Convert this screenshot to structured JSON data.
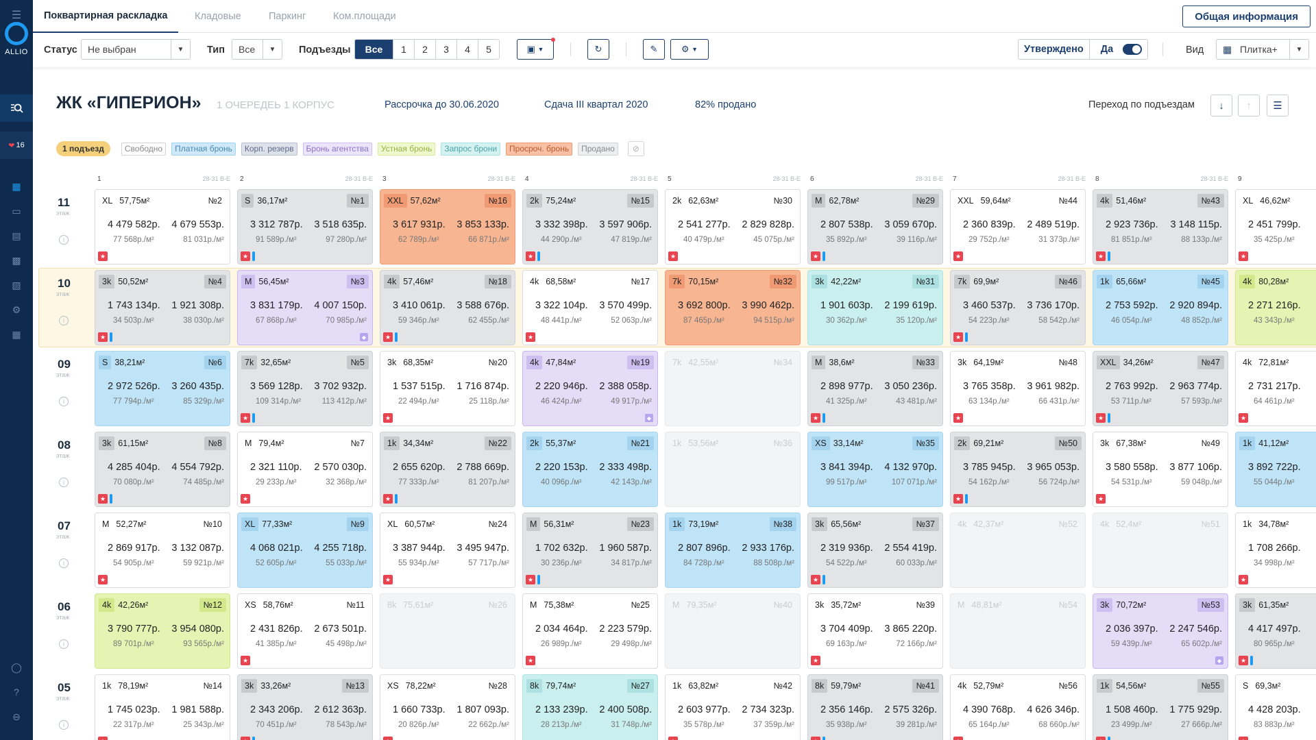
{
  "app": {
    "logo_text": "ALLIO",
    "badge_count": "16"
  },
  "tabs": [
    "Поквартирная раскладка",
    "Кладовые",
    "Паркинг",
    "Ком.площади"
  ],
  "info_button": "Общая информация",
  "filters": {
    "status_label": "Статус",
    "status_value": "Не выбран",
    "type_label": "Тип",
    "type_value": "Все",
    "entrances_label": "Подъезды",
    "entrances": [
      "Все",
      "1",
      "2",
      "3",
      "4",
      "5"
    ],
    "approved_label": "Утверждено",
    "approved_value": "Да",
    "view_label": "Вид",
    "view_value": "Плитка+"
  },
  "header": {
    "title": "ЖК «ГИПЕРИОН»",
    "subtitle": "1 ОЧЕРЕДЕЬ 1 КОРПУС",
    "installment": "Рассрочка до 30.06.2020",
    "delivery": "Сдача III квартал 2020",
    "sold": "82% продано",
    "goto": "Переход по подъездам"
  },
  "legend": {
    "entrance": "1 подъезд",
    "items": [
      {
        "label": "Свободно",
        "bg": "#ffffff",
        "border": "#d0d4d8",
        "color": "#888888"
      },
      {
        "label": "Платная бронь",
        "bg": "#cfe9f8",
        "border": "#9fd2f0",
        "color": "#4a87b3"
      },
      {
        "label": "Корп. резерв",
        "bg": "#dde1ea",
        "border": "#b7bfd0",
        "color": "#5d6b88"
      },
      {
        "label": "Бронь агентства",
        "bg": "#ece4fa",
        "border": "#cdbdf0",
        "color": "#8b72c9"
      },
      {
        "label": "Устная бронь",
        "bg": "#f0f8d0",
        "border": "#d9ec98",
        "color": "#99b040"
      },
      {
        "label": "Запрос брони",
        "bg": "#d4f2f2",
        "border": "#a9e2e2",
        "color": "#4aa2a2"
      },
      {
        "label": "Просроч. бронь",
        "bg": "#f8c0a4",
        "border": "#ef9c75",
        "color": "#b85a30"
      },
      {
        "label": "Продано",
        "bg": "#eceeef",
        "border": "#d0d3d6",
        "color": "#888888"
      }
    ]
  },
  "columns": [
    {
      "num": "1",
      "range": "28-31",
      "sec": "В-Е"
    },
    {
      "num": "2",
      "range": "28-31",
      "sec": "В-Е"
    },
    {
      "num": "3",
      "range": "28-31",
      "sec": "В-Е"
    },
    {
      "num": "4",
      "range": "28-31",
      "sec": "В-Е"
    },
    {
      "num": "5",
      "range": "28-31",
      "sec": "В-Е"
    },
    {
      "num": "6",
      "range": "28-31",
      "sec": "В-Е"
    },
    {
      "num": "7",
      "range": "28-31",
      "sec": "В-Е"
    },
    {
      "num": "8",
      "range": "28-31",
      "sec": "В-Е"
    },
    {
      "num": "9",
      "range": "",
      "sec": ""
    }
  ],
  "floor_word": "этаж",
  "floors": [
    {
      "num": "11",
      "highlight": false,
      "cells": [
        {
          "c": "white",
          "t": "XL",
          "a": "57,75м²",
          "n": "№2",
          "p1": "4 479 582р.",
          "p2": "4 679 553р.",
          "m1": "77 568р./м²",
          "m2": "81 031р./м²",
          "star": true
        },
        {
          "c": "gray",
          "t": "S",
          "a": "36,17м²",
          "n": "№1",
          "p1": "3 312 787р.",
          "p2": "3 518 635р.",
          "m1": "91 589р./м²",
          "m2": "97 280р./м²",
          "star": true,
          "bar": true
        },
        {
          "c": "orange",
          "t": "XXL",
          "a": "57,62м²",
          "n": "№16",
          "p1": "3 617 931р.",
          "p2": "3 853 133р.",
          "m1": "62 789р./м²",
          "m2": "66 871р./м²"
        },
        {
          "c": "gray",
          "t": "2k",
          "a": "75,24м²",
          "n": "№15",
          "p1": "3 332 398р.",
          "p2": "3 597 906р.",
          "m1": "44 290р./м²",
          "m2": "47 819р./м²",
          "star": true,
          "bar": true
        },
        {
          "c": "white",
          "t": "2k",
          "a": "62,63м²",
          "n": "№30",
          "p1": "2 541 277р.",
          "p2": "2 829 828р.",
          "m1": "40 479р./м²",
          "m2": "45 075р./м²",
          "star": true
        },
        {
          "c": "gray",
          "t": "M",
          "a": "62,78м²",
          "n": "№29",
          "p1": "2 807 538р.",
          "p2": "3 059 670р.",
          "m1": "35 892р./м²",
          "m2": "39 116р./м²",
          "star": true,
          "bar": true
        },
        {
          "c": "white",
          "t": "XXL",
          "a": "59,64м²",
          "n": "№44",
          "p1": "2 360 839р.",
          "p2": "2 489 519р.",
          "m1": "29 752р./м²",
          "m2": "31 373р./м²",
          "star": true
        },
        {
          "c": "gray",
          "t": "4k",
          "a": "51,46м²",
          "n": "№43",
          "p1": "2 923 736р.",
          "p2": "3 148 115р.",
          "m1": "81 851р./м²",
          "m2": "88 133р./м²",
          "star": true,
          "bar": true
        },
        {
          "c": "white",
          "t": "XL",
          "a": "46,62м²",
          "n": "",
          "p1": "2 451 799р.",
          "p2": "",
          "m1": "35 425р./м²",
          "m2": "",
          "star": true
        }
      ]
    },
    {
      "num": "10",
      "highlight": true,
      "cells": [
        {
          "c": "gray",
          "t": "3k",
          "a": "50,52м²",
          "n": "№4",
          "p1": "1 743 134р.",
          "p2": "1 921 308р.",
          "m1": "34 503р./м²",
          "m2": "38 030р./м²",
          "star": true,
          "bar": true
        },
        {
          "c": "purple",
          "t": "M",
          "a": "56,45м²",
          "n": "№3",
          "p1": "3 831 179р.",
          "p2": "4 007 150р.",
          "m1": "67 868р./м²",
          "m2": "70 985р./м²",
          "dia": true
        },
        {
          "c": "gray",
          "t": "4k",
          "a": "57,46м²",
          "n": "№18",
          "p1": "3 410 061р.",
          "p2": "3 588 676р.",
          "m1": "59 346р./м²",
          "m2": "62 455р./м²",
          "star": true,
          "bar": true
        },
        {
          "c": "white",
          "t": "4k",
          "a": "68,58м²",
          "n": "№17",
          "p1": "3 322 104р.",
          "p2": "3 570 499р.",
          "m1": "48 441р./м²",
          "m2": "52 063р./м²",
          "star": true
        },
        {
          "c": "orange",
          "t": "7k",
          "a": "70,15м²",
          "n": "№32",
          "p1": "3 692 800р.",
          "p2": "3 990 462р.",
          "m1": "87 465р./м²",
          "m2": "94 515р./м²"
        },
        {
          "c": "cyan",
          "t": "3k",
          "a": "42,22м²",
          "n": "№31",
          "p1": "1 901 603р.",
          "p2": "2 199 619р.",
          "m1": "30 362р./м²",
          "m2": "35 120р./м²"
        },
        {
          "c": "gray",
          "t": "7k",
          "a": "69,9м²",
          "n": "№46",
          "p1": "3 460 537р.",
          "p2": "3 736 170р.",
          "m1": "54 223р./м²",
          "m2": "58 542р./м²",
          "star": true,
          "bar": true
        },
        {
          "c": "blue",
          "t": "1k",
          "a": "65,66м²",
          "n": "№45",
          "p1": "2 753 592р.",
          "p2": "2 920 894р.",
          "m1": "46 054р./м²",
          "m2": "48 852р./м²"
        },
        {
          "c": "lime",
          "t": "4k",
          "a": "80,28м²",
          "n": "",
          "p1": "2 271 216р.",
          "p2": "",
          "m1": "43 343р./м²",
          "m2": ""
        }
      ]
    },
    {
      "num": "09",
      "highlight": false,
      "cells": [
        {
          "c": "blue",
          "t": "S",
          "a": "38,21м²",
          "n": "№6",
          "p1": "2 972 526р.",
          "p2": "3 260 435р.",
          "m1": "77 794р./м²",
          "m2": "85 329р./м²"
        },
        {
          "c": "gray",
          "t": "7k",
          "a": "32,65м²",
          "n": "№5",
          "p1": "3 569 128р.",
          "p2": "3 702 932р.",
          "m1": "109 314р./м²",
          "m2": "113 412р./м²",
          "star": true,
          "bar": true
        },
        {
          "c": "white",
          "t": "3k",
          "a": "68,35м²",
          "n": "№20",
          "p1": "1 537 515р.",
          "p2": "1 716 874р.",
          "m1": "22 494р./м²",
          "m2": "25 118р./м²",
          "star": true
        },
        {
          "c": "purple",
          "t": "4k",
          "a": "47,84м²",
          "n": "№19",
          "p1": "2 220 946р.",
          "p2": "2 388 058р.",
          "m1": "46 424р./м²",
          "m2": "49 917р./м²",
          "dia": true
        },
        {
          "c": "empty",
          "t": "7k",
          "a": "42,55м²",
          "n": "№34"
        },
        {
          "c": "gray",
          "t": "M",
          "a": "38,6м²",
          "n": "№33",
          "p1": "2 898 977р.",
          "p2": "3 050 236р.",
          "m1": "41 325р./м²",
          "m2": "43 481р./м²",
          "star": true,
          "bar": true
        },
        {
          "c": "white",
          "t": "3k",
          "a": "64,19м²",
          "n": "№48",
          "p1": "3 765 358р.",
          "p2": "3 961 982р.",
          "m1": "63 134р./м²",
          "m2": "66 431р./м²",
          "star": true
        },
        {
          "c": "gray",
          "t": "XXL",
          "a": "34,26м²",
          "n": "№47",
          "p1": "2 763 992р.",
          "p2": "2 963 774р.",
          "m1": "53 711р./м²",
          "m2": "57 593р./м²",
          "star": true,
          "bar": true
        },
        {
          "c": "white",
          "t": "4k",
          "a": "72,81м²",
          "n": "",
          "p1": "2 731 217р.",
          "p2": "",
          "m1": "64 461р./м²",
          "m2": "",
          "star": true
        }
      ]
    },
    {
      "num": "08",
      "highlight": false,
      "cells": [
        {
          "c": "gray",
          "t": "3k",
          "a": "61,15м²",
          "n": "№8",
          "p1": "4 285 404р.",
          "p2": "4 554 792р.",
          "m1": "70 080р./м²",
          "m2": "74 485р./м²",
          "star": true,
          "bar": true
        },
        {
          "c": "white",
          "t": "M",
          "a": "79,4м²",
          "n": "№7",
          "p1": "2 321 110р.",
          "p2": "2 570 030р.",
          "m1": "29 233р./м²",
          "m2": "32 368р./м²",
          "star": true
        },
        {
          "c": "gray",
          "t": "1k",
          "a": "34,34м²",
          "n": "№22",
          "p1": "2 655 620р.",
          "p2": "2 788 669р.",
          "m1": "77 333р./м²",
          "m2": "81 207р./м²",
          "star": true,
          "bar": true
        },
        {
          "c": "blue",
          "t": "2k",
          "a": "55,37м²",
          "n": "№21",
          "p1": "2 220 153р.",
          "p2": "2 333 498р.",
          "m1": "40 096р./м²",
          "m2": "42 143р./м²"
        },
        {
          "c": "empty",
          "t": "1k",
          "a": "53,56м²",
          "n": "№36"
        },
        {
          "c": "blue",
          "t": "XS",
          "a": "33,14м²",
          "n": "№35",
          "p1": "3 841 394р.",
          "p2": "4 132 970р.",
          "m1": "99 517р./м²",
          "m2": "107 071р./м²"
        },
        {
          "c": "gray",
          "t": "2k",
          "a": "69,21м²",
          "n": "№50",
          "p1": "3 785 945р.",
          "p2": "3 965 053р.",
          "m1": "54 162р./м²",
          "m2": "56 724р./м²",
          "star": true,
          "bar": true
        },
        {
          "c": "white",
          "t": "3k",
          "a": "67,38м²",
          "n": "№49",
          "p1": "3 580 558р.",
          "p2": "3 877 106р.",
          "m1": "54 531р./м²",
          "m2": "59 048р./м²",
          "star": true
        },
        {
          "c": "blue",
          "t": "1k",
          "a": "41,12м²",
          "n": "",
          "p1": "3 892 722р.",
          "p2": "",
          "m1": "55 044р./м²",
          "m2": ""
        }
      ]
    },
    {
      "num": "07",
      "highlight": false,
      "cells": [
        {
          "c": "white",
          "t": "M",
          "a": "52,27м²",
          "n": "№10",
          "p1": "2 869 917р.",
          "p2": "3 132 087р.",
          "m1": "54 905р./м²",
          "m2": "59 921р./м²",
          "star": true
        },
        {
          "c": "blue",
          "t": "XL",
          "a": "77,33м²",
          "n": "№9",
          "p1": "4 068 021р.",
          "p2": "4 255 718р.",
          "m1": "52 605р./м²",
          "m2": "55 033р./м²"
        },
        {
          "c": "white",
          "t": "XL",
          "a": "60,57м²",
          "n": "№24",
          "p1": "3 387 944р.",
          "p2": "3 495 947р.",
          "m1": "55 934р./м²",
          "m2": "57 717р./м²",
          "star": true
        },
        {
          "c": "gray",
          "t": "M",
          "a": "56,31м²",
          "n": "№23",
          "p1": "1 702 632р.",
          "p2": "1 960 587р.",
          "m1": "30 236р./м²",
          "m2": "34 817р./м²",
          "star": true,
          "bar": true
        },
        {
          "c": "blue",
          "t": "1k",
          "a": "73,19м²",
          "n": "№38",
          "p1": "2 807 896р.",
          "p2": "2 933 176р.",
          "m1": "84 728р./м²",
          "m2": "88 508р./м²"
        },
        {
          "c": "gray",
          "t": "3k",
          "a": "65,56м²",
          "n": "№37",
          "p1": "2 319 936р.",
          "p2": "2 554 419р.",
          "m1": "54 522р./м²",
          "m2": "60 033р./м²",
          "star": true,
          "bar": true
        },
        {
          "c": "empty",
          "t": "4k",
          "a": "42,37м²",
          "n": "№52"
        },
        {
          "c": "empty",
          "t": "4k",
          "a": "52,4м²",
          "n": "№51"
        },
        {
          "c": "white",
          "t": "1k",
          "a": "34,78м²",
          "n": "",
          "p1": "1 708 266р.",
          "p2": "",
          "m1": "34 998р./м²",
          "m2": "",
          "star": true
        }
      ]
    },
    {
      "num": "06",
      "highlight": false,
      "cells": [
        {
          "c": "lime",
          "t": "4k",
          "a": "42,26м²",
          "n": "№12",
          "p1": "3 790 777р.",
          "p2": "3 954 080р.",
          "m1": "89 701р./м²",
          "m2": "93 565р./м²"
        },
        {
          "c": "white",
          "t": "XS",
          "a": "58,76м²",
          "n": "№11",
          "p1": "2 431 826р.",
          "p2": "2 673 501р.",
          "m1": "41 385р./м²",
          "m2": "45 498р./м²",
          "star": true
        },
        {
          "c": "empty",
          "t": "8k",
          "a": "75,61м²",
          "n": "№26"
        },
        {
          "c": "white",
          "t": "M",
          "a": "75,38м²",
          "n": "№25",
          "p1": "2 034 464р.",
          "p2": "2 223 579р.",
          "m1": "26 989р./м²",
          "m2": "29 498р./м²",
          "star": true
        },
        {
          "c": "empty",
          "t": "M",
          "a": "79,35м²",
          "n": "№40"
        },
        {
          "c": "white",
          "t": "3k",
          "a": "35,72м²",
          "n": "№39",
          "p1": "3 704 409р.",
          "p2": "3 865 220р.",
          "m1": "69 163р./м²",
          "m2": "72 166р./м²",
          "star": true
        },
        {
          "c": "empty",
          "t": "M",
          "a": "48,81м²",
          "n": "№54"
        },
        {
          "c": "purple",
          "t": "3k",
          "a": "70,72м²",
          "n": "№53",
          "p1": "2 036 397р.",
          "p2": "2 247 546р.",
          "m1": "59 439р./м²",
          "m2": "65 602р./м²",
          "dia": true
        },
        {
          "c": "gray",
          "t": "3k",
          "a": "61,35м²",
          "n": "",
          "p1": "4 417 497р.",
          "p2": "",
          "m1": "80 965р./м²",
          "m2": "",
          "star": true,
          "bar": true
        }
      ]
    },
    {
      "num": "05",
      "highlight": false,
      "cells": [
        {
          "c": "white",
          "t": "1k",
          "a": "78,19м²",
          "n": "№14",
          "p1": "1 745 023р.",
          "p2": "1 981 588р.",
          "m1": "22 317р./м²",
          "m2": "25 343р./м²",
          "star": true
        },
        {
          "c": "gray",
          "t": "3k",
          "a": "33,26м²",
          "n": "№13",
          "p1": "2 343 206р.",
          "p2": "2 612 363р.",
          "m1": "70 451р./м²",
          "m2": "78 543р./м²",
          "star": true,
          "bar": true
        },
        {
          "c": "white",
          "t": "XS",
          "a": "78,22м²",
          "n": "№28",
          "p1": "1 660 733р.",
          "p2": "1 807 093р.",
          "m1": "20 826р./м²",
          "m2": "22 662р./м²",
          "star": true
        },
        {
          "c": "cyan",
          "t": "8k",
          "a": "79,74м²",
          "n": "№27",
          "p1": "2 133 239р.",
          "p2": "2 400 508р.",
          "m1": "28 213р./м²",
          "m2": "31 748р./м²"
        },
        {
          "c": "white",
          "t": "1k",
          "a": "63,82м²",
          "n": "№42",
          "p1": "2 603 977р.",
          "p2": "2 734 323р.",
          "m1": "35 578р./м²",
          "m2": "37 359р./м²",
          "star": true
        },
        {
          "c": "gray",
          "t": "8k",
          "a": "59,79м²",
          "n": "№41",
          "p1": "2 356 146р.",
          "p2": "2 575 326р.",
          "m1": "35 938р./м²",
          "m2": "39 281р./м²",
          "star": true,
          "bar": true
        },
        {
          "c": "white",
          "t": "4k",
          "a": "52,79м²",
          "n": "№56",
          "p1": "4 390 768р.",
          "p2": "4 626 346р.",
          "m1": "65 164р./м²",
          "m2": "68 660р./м²",
          "star": true
        },
        {
          "c": "gray",
          "t": "1k",
          "a": "54,56м²",
          "n": "№55",
          "p1": "1 508 460р.",
          "p2": "1 775 929р.",
          "m1": "23 499р./м²",
          "m2": "27 666р./м²",
          "star": true,
          "bar": true
        },
        {
          "c": "white",
          "t": "S",
          "a": "69,3м²",
          "n": "",
          "p1": "4 428 203р.",
          "p2": "",
          "m1": "83 883р./м²",
          "m2": "",
          "star": true
        }
      ]
    }
  ]
}
